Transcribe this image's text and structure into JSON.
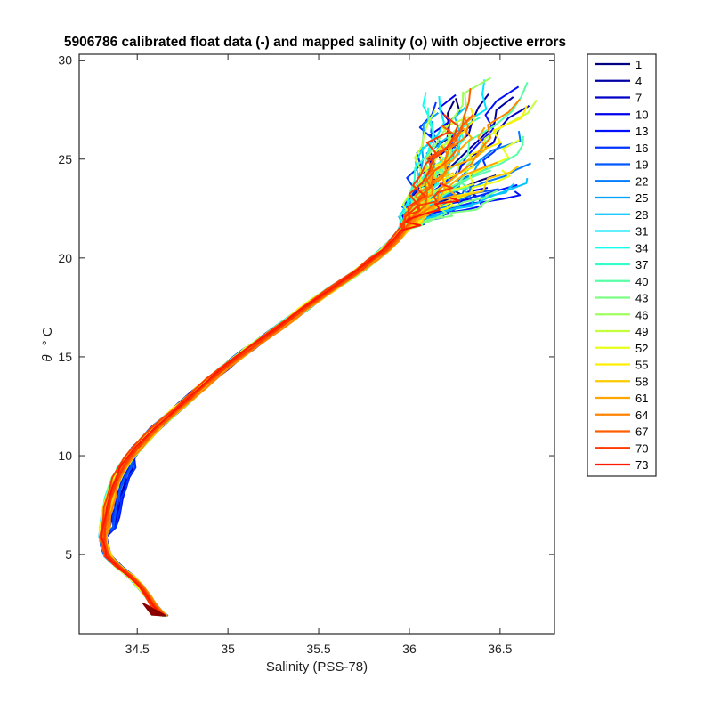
{
  "chart_data": {
    "type": "line",
    "title": "5906786 calibrated float data (-) and mapped salinity (o) with objective errors",
    "xlabel": "Salinity (PSS-78)",
    "ylabel_symbol": "θ",
    "ylabel_unit": "° C",
    "xlim": [
      34.18,
      36.8
    ],
    "ylim": [
      1.0,
      30.3
    ],
    "xticks": [
      34.5,
      35,
      35.5,
      36,
      36.5
    ],
    "xtick_labels": [
      "34.5",
      "35",
      "35.5",
      "36",
      "36.5"
    ],
    "yticks": [
      5,
      10,
      15,
      20,
      25,
      30
    ],
    "ytick_labels": [
      "5",
      "10",
      "15",
      "20",
      "25",
      "30"
    ],
    "grid": false,
    "legend_position": "outside-right",
    "colormap": "jet",
    "legend": [
      "1",
      "4",
      "7",
      "10",
      "13",
      "16",
      "19",
      "22",
      "25",
      "28",
      "31",
      "34",
      "37",
      "40",
      "43",
      "46",
      "49",
      "52",
      "55",
      "58",
      "61",
      "64",
      "67",
      "70",
      "73"
    ],
    "legend_colors": [
      "#000080",
      "#0000a4",
      "#0000c8",
      "#0000ec",
      "#0010ff",
      "#0034ff",
      "#0058ff",
      "#007cff",
      "#00a0ff",
      "#00c4ff",
      "#00e8ff",
      "#10ffef",
      "#34ffcb",
      "#58ffa7",
      "#7cff83",
      "#a0ff5f",
      "#c4ff3b",
      "#e8ff17",
      "#ffef00",
      "#ffcb00",
      "#ffa700",
      "#ff8300",
      "#ff5f00",
      "#ff3b00",
      "#ff1700"
    ],
    "mean_profile": [
      {
        "s": 34.65,
        "t": 1.9
      },
      {
        "s": 34.6,
        "t": 2.3
      },
      {
        "s": 34.55,
        "t": 3.0
      },
      {
        "s": 34.5,
        "t": 3.6
      },
      {
        "s": 34.44,
        "t": 4.1
      },
      {
        "s": 34.38,
        "t": 4.5
      },
      {
        "s": 34.33,
        "t": 5.0
      },
      {
        "s": 34.31,
        "t": 5.8
      },
      {
        "s": 34.33,
        "t": 7.0
      },
      {
        "s": 34.36,
        "t": 8.2
      },
      {
        "s": 34.4,
        "t": 9.2
      },
      {
        "s": 34.48,
        "t": 10.2
      },
      {
        "s": 34.6,
        "t": 11.4
      },
      {
        "s": 34.75,
        "t": 12.6
      },
      {
        "s": 34.92,
        "t": 14.0
      },
      {
        "s": 35.1,
        "t": 15.3
      },
      {
        "s": 35.3,
        "t": 16.6
      },
      {
        "s": 35.5,
        "t": 18.0
      },
      {
        "s": 35.7,
        "t": 19.2
      },
      {
        "s": 35.88,
        "t": 20.5
      },
      {
        "s": 36.02,
        "t": 22.0
      },
      {
        "s": 36.15,
        "t": 23.3
      }
    ],
    "surface_spread": {
      "s_range": [
        35.85,
        36.7
      ],
      "t_range": [
        21.5,
        29.2
      ]
    }
  }
}
